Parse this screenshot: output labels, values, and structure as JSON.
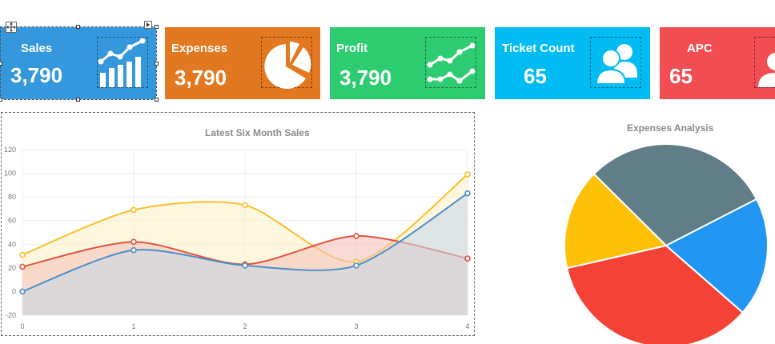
{
  "cards": [
    {
      "id": "sales",
      "label": "Sales",
      "value": "3,790",
      "color": "#3598DC",
      "icon": "growth-chart-icon"
    },
    {
      "id": "expenses",
      "label": "Expenses",
      "value": "3,790",
      "color": "#E2781F",
      "icon": "pie-chart-icon"
    },
    {
      "id": "profit",
      "label": "Profit",
      "value": "3,790",
      "color": "#2ECC71",
      "icon": "trend-lines-icon"
    },
    {
      "id": "ticket-count",
      "label": "Ticket Count",
      "value": "65",
      "color": "#00BCF2",
      "icon": "users-icon"
    },
    {
      "id": "apc",
      "label": "APC",
      "value": "65",
      "color": "#F24D53",
      "icon": "user-icon"
    }
  ],
  "chart_data": [
    {
      "type": "line",
      "title": "Latest Six Month Sales",
      "x": [
        0,
        1,
        2,
        3,
        4
      ],
      "ylim": [
        -20,
        120
      ],
      "yticks": [
        -20,
        0,
        20,
        40,
        60,
        80,
        100,
        120
      ],
      "grid": true,
      "fill": true,
      "series": [
        {
          "values": [
            31,
            69,
            73,
            25,
            99
          ],
          "color": "#F9C02A",
          "fill": "#FDF2CC"
        },
        {
          "values": [
            21,
            42,
            23,
            47,
            28
          ],
          "color": "#E3543F",
          "fill": "#F4C3B7"
        },
        {
          "values": [
            0,
            35,
            22,
            22,
            83
          ],
          "color": "#4A8FC8",
          "fill": "#C9D8E6"
        }
      ]
    },
    {
      "type": "pie",
      "title": "Expenses Analysis",
      "slices": [
        {
          "value": 30,
          "color": "#607D88"
        },
        {
          "value": 19,
          "color": "#2196F3"
        },
        {
          "value": 35,
          "color": "#F44336"
        },
        {
          "value": 16,
          "color": "#FFC107"
        }
      ]
    }
  ]
}
